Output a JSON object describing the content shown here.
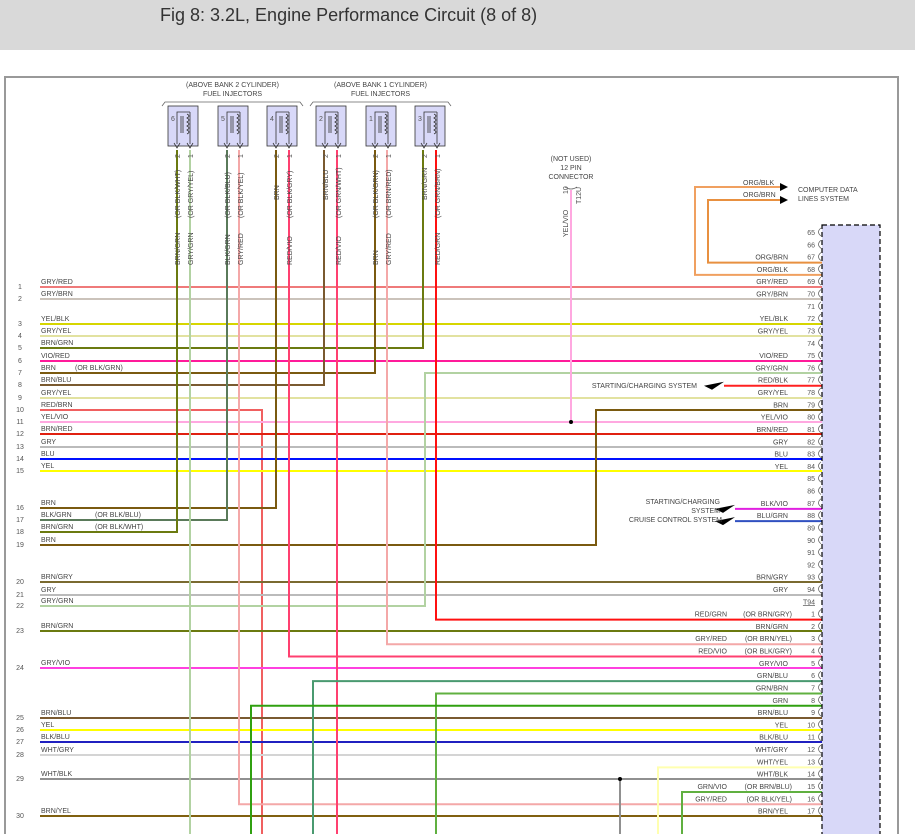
{
  "title": "Fig 8: 3.2L, Engine Performance Circuit (8 of 8)",
  "injector_groups": [
    {
      "label_lines": [
        "(ABOVE BANK 2 CYLINDER)",
        "FUEL INJECTORS"
      ],
      "injectors": [
        {
          "num": "6",
          "pins": [
            {
              "num": "2",
              "wire": "BRN/GRN",
              "alt": "(OR BLK/WHT)"
            },
            {
              "num": "1",
              "wire": "GRY/GRN",
              "alt": "(OR GRY/YEL)"
            }
          ]
        },
        {
          "num": "5",
          "pins": [
            {
              "num": "2",
              "wire": "BLK/GRN",
              "alt": "(OR BLK/BLU)"
            },
            {
              "num": "1",
              "wire": "GRY/RED",
              "alt": "(OR BLK/YEL)"
            }
          ]
        },
        {
          "num": "4",
          "pins": [
            {
              "num": "2",
              "wire": "BRN",
              "alt": ""
            },
            {
              "num": "1",
              "wire": "RED/VIO",
              "alt": "(OR BLK/GRY)"
            }
          ]
        }
      ]
    },
    {
      "label_lines": [
        "(ABOVE BANK 1 CYLINDER)",
        "FUEL INJECTORS"
      ],
      "injectors": [
        {
          "num": "2",
          "pins": [
            {
              "num": "2",
              "wire": "BRN/BLU",
              "alt": ""
            },
            {
              "num": "1",
              "wire": "RED/VIO",
              "alt": "(OR GRN/WHT)"
            }
          ]
        },
        {
          "num": "1",
          "pins": [
            {
              "num": "2",
              "wire": "BRN",
              "alt": "(OR BLK/GRN)"
            },
            {
              "num": "1",
              "wire": "GRY/RED",
              "alt": "(OR BRN/RED)"
            }
          ]
        },
        {
          "num": "3",
          "pins": [
            {
              "num": "2",
              "wire": "BRN/GRN",
              "alt": ""
            },
            {
              "num": "1",
              "wire": "RED/GRN",
              "alt": "(OR GRN/BRN)"
            }
          ]
        }
      ]
    }
  ],
  "connector_12pin": {
    "label_lines": [
      "(NOT USED)",
      "12 PIN",
      "CONNECTOR"
    ],
    "pin": "10",
    "id": "T12U",
    "wire": "YEL/VIO"
  },
  "left_pins": [
    {
      "num": "1",
      "label": "GRY/RED",
      "alt": ""
    },
    {
      "num": "2",
      "label": "GRY/BRN",
      "alt": ""
    },
    {
      "num": "3",
      "label": "YEL/BLK",
      "alt": ""
    },
    {
      "num": "4",
      "label": "GRY/YEL",
      "alt": ""
    },
    {
      "num": "5",
      "label": "BRN/GRN",
      "alt": ""
    },
    {
      "num": "6",
      "label": "VIO/RED",
      "alt": ""
    },
    {
      "num": "7",
      "label": "BRN",
      "alt": "(OR BLK/GRN)"
    },
    {
      "num": "8",
      "label": "BRN/BLU",
      "alt": ""
    },
    {
      "num": "9",
      "label": "GRY/YEL",
      "alt": ""
    },
    {
      "num": "10",
      "label": "RED/BRN",
      "alt": ""
    },
    {
      "num": "11",
      "label": "YEL/VIO",
      "alt": ""
    },
    {
      "num": "12",
      "label": "BRN/RED",
      "alt": ""
    },
    {
      "num": "13",
      "label": "GRY",
      "alt": ""
    },
    {
      "num": "14",
      "label": "BLU",
      "alt": ""
    },
    {
      "num": "15",
      "label": "YEL",
      "alt": ""
    },
    {
      "num": "16",
      "label": "BRN",
      "alt": ""
    },
    {
      "num": "17",
      "label": "BLK/GRN",
      "alt": "(OR BLK/BLU)"
    },
    {
      "num": "18",
      "label": "BRN/GRN",
      "alt": "(OR BLK/WHT)"
    },
    {
      "num": "19",
      "label": "BRN",
      "alt": ""
    },
    {
      "num": "20",
      "label": "BRN/GRY",
      "alt": ""
    },
    {
      "num": "21",
      "label": "GRY",
      "alt": ""
    },
    {
      "num": "22",
      "label": "GRY/GRN",
      "alt": ""
    },
    {
      "num": "23",
      "label": "BRN/GRN",
      "alt": ""
    },
    {
      "num": "24",
      "label": "GRY/VIO",
      "alt": ""
    },
    {
      "num": "25",
      "label": "BRN/BLU",
      "alt": ""
    },
    {
      "num": "26",
      "label": "YEL",
      "alt": ""
    },
    {
      "num": "27",
      "label": "BLK/BLU",
      "alt": ""
    },
    {
      "num": "28",
      "label": "WHT/GRY",
      "alt": ""
    },
    {
      "num": "29",
      "label": "WHT/BLK",
      "alt": ""
    },
    {
      "num": "30",
      "label": "BRN/YEL",
      "alt": ""
    }
  ],
  "right_pins": [
    {
      "num": "65",
      "label": "",
      "alt": ""
    },
    {
      "num": "66",
      "label": "",
      "alt": ""
    },
    {
      "num": "67",
      "label": "ORG/BRN",
      "alt": ""
    },
    {
      "num": "68",
      "label": "ORG/BLK",
      "alt": ""
    },
    {
      "num": "69",
      "label": "GRY/RED",
      "alt": ""
    },
    {
      "num": "70",
      "label": "GRY/BRN",
      "alt": ""
    },
    {
      "num": "71",
      "label": "",
      "alt": ""
    },
    {
      "num": "72",
      "label": "YEL/BLK",
      "alt": ""
    },
    {
      "num": "73",
      "label": "GRY/YEL",
      "alt": ""
    },
    {
      "num": "74",
      "label": "",
      "alt": ""
    },
    {
      "num": "75",
      "label": "VIO/RED",
      "alt": ""
    },
    {
      "num": "76",
      "label": "GRY/GRN",
      "alt": ""
    },
    {
      "num": "77",
      "label": "RED/BLK",
      "alt": ""
    },
    {
      "num": "78",
      "label": "GRY/YEL",
      "alt": ""
    },
    {
      "num": "79",
      "label": "BRN",
      "alt": ""
    },
    {
      "num": "80",
      "label": "YEL/VIO",
      "alt": ""
    },
    {
      "num": "81",
      "label": "BRN/RED",
      "alt": ""
    },
    {
      "num": "82",
      "label": "GRY",
      "alt": ""
    },
    {
      "num": "83",
      "label": "BLU",
      "alt": ""
    },
    {
      "num": "84",
      "label": "YEL",
      "alt": ""
    },
    {
      "num": "85",
      "label": "",
      "alt": ""
    },
    {
      "num": "86",
      "label": "",
      "alt": ""
    },
    {
      "num": "87",
      "label": "BLK/VIO",
      "alt": ""
    },
    {
      "num": "88",
      "label": "BLU/GRN",
      "alt": ""
    },
    {
      "num": "89",
      "label": "",
      "alt": ""
    },
    {
      "num": "90",
      "label": "",
      "alt": ""
    },
    {
      "num": "91",
      "label": "",
      "alt": ""
    },
    {
      "num": "92",
      "label": "",
      "alt": ""
    },
    {
      "num": "93",
      "label": "BRN/GRY",
      "alt": ""
    },
    {
      "num": "94",
      "label": "GRY",
      "alt": ""
    },
    {
      "num": "",
      "label": "",
      "alt": "",
      "header": "T94"
    },
    {
      "num": "1",
      "label": "RED/GRN",
      "alt": "(OR BRN/GRY)"
    },
    {
      "num": "2",
      "label": "BRN/GRN",
      "alt": ""
    },
    {
      "num": "3",
      "label": "GRY/RED",
      "alt": "(OR BRN/YEL)"
    },
    {
      "num": "4",
      "label": "RED/VIO",
      "alt": "(OR BLK/GRY)"
    },
    {
      "num": "5",
      "label": "GRY/VIO",
      "alt": ""
    },
    {
      "num": "6",
      "label": "GRN/BLU",
      "alt": ""
    },
    {
      "num": "7",
      "label": "GRN/BRN",
      "alt": ""
    },
    {
      "num": "8",
      "label": "GRN",
      "alt": ""
    },
    {
      "num": "9",
      "label": "BRN/BLU",
      "alt": ""
    },
    {
      "num": "10",
      "label": "YEL",
      "alt": ""
    },
    {
      "num": "11",
      "label": "BLK/BLU",
      "alt": ""
    },
    {
      "num": "12",
      "label": "WHT/GRY",
      "alt": ""
    },
    {
      "num": "13",
      "label": "WHT/YEL",
      "alt": ""
    },
    {
      "num": "14",
      "label": "WHT/BLK",
      "alt": ""
    },
    {
      "num": "15",
      "label": "GRN/VIO",
      "alt": "(OR BRN/BLU)"
    },
    {
      "num": "16",
      "label": "GRY/RED",
      "alt": "(OR BLK/YEL)"
    },
    {
      "num": "17",
      "label": "BRN/YEL",
      "alt": ""
    }
  ],
  "destinations": {
    "computer_data": [
      "COMPUTER DATA",
      "LINES SYSTEM"
    ],
    "data_wire_labels": [
      "ORG/BLK",
      "ORG/BRN"
    ],
    "starting_charging_1": "STARTING/CHARGING SYSTEM",
    "starting_charging_2": [
      "STARTING/CHARGING",
      "SYSTEM"
    ],
    "cruise_control": "CRUISE CONTROL SYSTEM"
  },
  "wire_colors": {
    "GRY/RED": "#ef7a7a",
    "GRY/BRN": "#cbc3bb",
    "YEL/BLK": "#d6d600",
    "GRY/YEL": "#e2e2a0",
    "BRN/GRN": "#6b7a10",
    "VIO/RED": "#ff1a9a",
    "BRN": "#7a5a10",
    "BRN/BLU": "#7a5a30",
    "RED/BRN": "#f06060",
    "YEL/VIO": "#ffa8e0",
    "BRN/RED": "#e02010",
    "GRY": "#bbbbbb",
    "BLU": "#0010ff",
    "YEL": "#ffff00",
    "BLK/GRN": "#5a7a5a",
    "BRN/GRY": "#7a6a30",
    "GRY/GRN": "#b2d2a2",
    "RED/VIO": "#ff4070",
    "GRY/VIO": "#ff40e0",
    "GRN/BLU": "#4a9a70",
    "GRN/BRN": "#60b040",
    "GRN": "#30a010",
    "BLK/BLU": "#2020c0",
    "WHT/GRY": "#d4d4d4",
    "WHT/YEL": "#ffffb0",
    "WHT/BLK": "#909090",
    "GRN/VIO": "#60b040",
    "GRY/RED2": "#f4a8a8",
    "BRN/YEL": "#806010",
    "RED/GRN": "#ff1010",
    "ORG/BLK": "#f0a060",
    "ORG/BRN": "#e89040",
    "RED/BLK": "#ff2020",
    "BLK/VIO": "#e020e0",
    "BLU/GRN": "#3050c0"
  },
  "connector_fill": "#d8d8f8"
}
